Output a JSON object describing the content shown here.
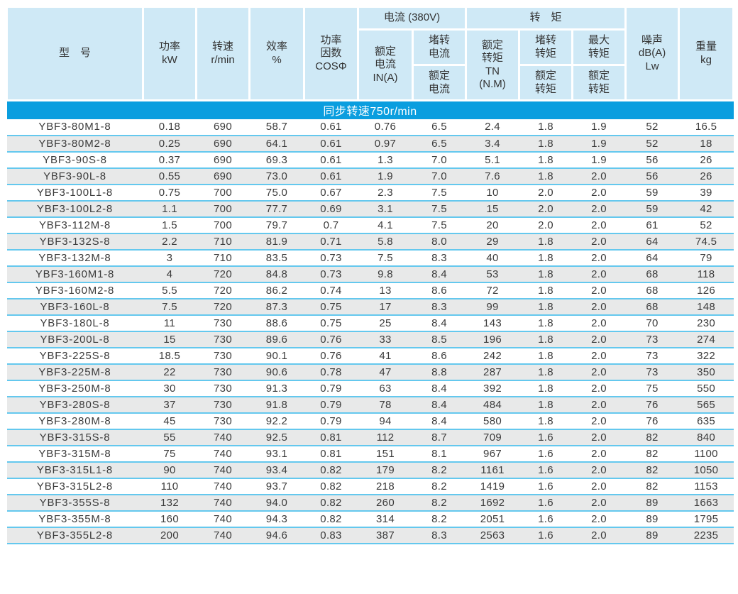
{
  "table": {
    "header": {
      "model": "型　号",
      "power": "功率\nkW",
      "speed": "转速\nr/min",
      "efficiency": "效率\n%",
      "power_factor": "功率\n因数\nCOSΦ",
      "current_group": "电流 (380V)",
      "rated_current": "额定\n电流\nIN(A)",
      "locked_current_num": "堵转\n电流",
      "locked_current_den": "额定\n电流",
      "torque_group": "转　矩",
      "rated_torque": "额定\n转矩\nTN\n(N.M)",
      "locked_torque_num": "堵转\n转矩",
      "locked_torque_den": "额定\n转矩",
      "max_torque_num": "最大\n转矩",
      "max_torque_den": "额定\n转矩",
      "noise": "噪声\ndB(A)\nLw",
      "weight": "重量\nkg"
    },
    "section_title": "同步转速750r/min",
    "column_keys": [
      "model",
      "power-kw",
      "speed-rpm",
      "efficiency-pct",
      "cos-phi",
      "rated-current-a",
      "locked-to-rated-current",
      "rated-torque-nm",
      "locked-to-rated-torque",
      "max-to-rated-torque",
      "noise-db",
      "weight-kg"
    ],
    "rows": [
      [
        "YBF3-80M1-8",
        "0.18",
        "690",
        "58.7",
        "0.61",
        "0.76",
        "6.5",
        "2.4",
        "1.8",
        "1.9",
        "52",
        "16.5"
      ],
      [
        "YBF3-80M2-8",
        "0.25",
        "690",
        "64.1",
        "0.61",
        "0.97",
        "6.5",
        "3.4",
        "1.8",
        "1.9",
        "52",
        "18"
      ],
      [
        "YBF3-90S-8",
        "0.37",
        "690",
        "69.3",
        "0.61",
        "1.3",
        "7.0",
        "5.1",
        "1.8",
        "1.9",
        "56",
        "26"
      ],
      [
        "YBF3-90L-8",
        "0.55",
        "690",
        "73.0",
        "0.61",
        "1.9",
        "7.0",
        "7.6",
        "1.8",
        "2.0",
        "56",
        "26"
      ],
      [
        "YBF3-100L1-8",
        "0.75",
        "700",
        "75.0",
        "0.67",
        "2.3",
        "7.5",
        "10",
        "2.0",
        "2.0",
        "59",
        "39"
      ],
      [
        "YBF3-100L2-8",
        "1.1",
        "700",
        "77.7",
        "0.69",
        "3.1",
        "7.5",
        "15",
        "2.0",
        "2.0",
        "59",
        "42"
      ],
      [
        "YBF3-112M-8",
        "1.5",
        "700",
        "79.7",
        "0.7",
        "4.1",
        "7.5",
        "20",
        "2.0",
        "2.0",
        "61",
        "52"
      ],
      [
        "YBF3-132S-8",
        "2.2",
        "710",
        "81.9",
        "0.71",
        "5.8",
        "8.0",
        "29",
        "1.8",
        "2.0",
        "64",
        "74.5"
      ],
      [
        "YBF3-132M-8",
        "3",
        "710",
        "83.5",
        "0.73",
        "7.5",
        "8.3",
        "40",
        "1.8",
        "2.0",
        "64",
        "79"
      ],
      [
        "YBF3-160M1-8",
        "4",
        "720",
        "84.8",
        "0.73",
        "9.8",
        "8.4",
        "53",
        "1.8",
        "2.0",
        "68",
        "118"
      ],
      [
        "YBF3-160M2-8",
        "5.5",
        "720",
        "86.2",
        "0.74",
        "13",
        "8.6",
        "72",
        "1.8",
        "2.0",
        "68",
        "126"
      ],
      [
        "YBF3-160L-8",
        "7.5",
        "720",
        "87.3",
        "0.75",
        "17",
        "8.3",
        "99",
        "1.8",
        "2.0",
        "68",
        "148"
      ],
      [
        "YBF3-180L-8",
        "11",
        "730",
        "88.6",
        "0.75",
        "25",
        "8.4",
        "143",
        "1.8",
        "2.0",
        "70",
        "230"
      ],
      [
        "YBF3-200L-8",
        "15",
        "730",
        "89.6",
        "0.76",
        "33",
        "8.5",
        "196",
        "1.8",
        "2.0",
        "73",
        "274"
      ],
      [
        "YBF3-225S-8",
        "18.5",
        "730",
        "90.1",
        "0.76",
        "41",
        "8.6",
        "242",
        "1.8",
        "2.0",
        "73",
        "322"
      ],
      [
        "YBF3-225M-8",
        "22",
        "730",
        "90.6",
        "0.78",
        "47",
        "8.8",
        "287",
        "1.8",
        "2.0",
        "73",
        "350"
      ],
      [
        "YBF3-250M-8",
        "30",
        "730",
        "91.3",
        "0.79",
        "63",
        "8.4",
        "392",
        "1.8",
        "2.0",
        "75",
        "550"
      ],
      [
        "YBF3-280S-8",
        "37",
        "730",
        "91.8",
        "0.79",
        "78",
        "8.4",
        "484",
        "1.8",
        "2.0",
        "76",
        "565"
      ],
      [
        "YBF3-280M-8",
        "45",
        "730",
        "92.2",
        "0.79",
        "94",
        "8.4",
        "580",
        "1.8",
        "2.0",
        "76",
        "635"
      ],
      [
        "YBF3-315S-8",
        "55",
        "740",
        "92.5",
        "0.81",
        "112",
        "8.7",
        "709",
        "1.6",
        "2.0",
        "82",
        "840"
      ],
      [
        "YBF3-315M-8",
        "75",
        "740",
        "93.1",
        "0.81",
        "151",
        "8.1",
        "967",
        "1.6",
        "2.0",
        "82",
        "1100"
      ],
      [
        "YBF3-315L1-8",
        "90",
        "740",
        "93.4",
        "0.82",
        "179",
        "8.2",
        "1161",
        "1.6",
        "2.0",
        "82",
        "1050"
      ],
      [
        "YBF3-315L2-8",
        "110",
        "740",
        "93.7",
        "0.82",
        "218",
        "8.2",
        "1419",
        "1.6",
        "2.0",
        "82",
        "1153"
      ],
      [
        "YBF3-355S-8",
        "132",
        "740",
        "94.0",
        "0.82",
        "260",
        "8.2",
        "1692",
        "1.6",
        "2.0",
        "89",
        "1663"
      ],
      [
        "YBF3-355M-8",
        "160",
        "740",
        "94.3",
        "0.82",
        "314",
        "8.2",
        "2051",
        "1.6",
        "2.0",
        "89",
        "1795"
      ],
      [
        "YBF3-355L2-8",
        "200",
        "740",
        "94.6",
        "0.83",
        "387",
        "8.3",
        "2563",
        "1.6",
        "2.0",
        "89",
        "2235"
      ]
    ]
  },
  "colors": {
    "header_bg": "#cfe9f6",
    "band_bg": "#0a9edf",
    "band_text": "#ffffff",
    "row_alt_bg": "#e8e9e9",
    "row_separator": "#64c8ee",
    "text": "#3b3b3b"
  }
}
